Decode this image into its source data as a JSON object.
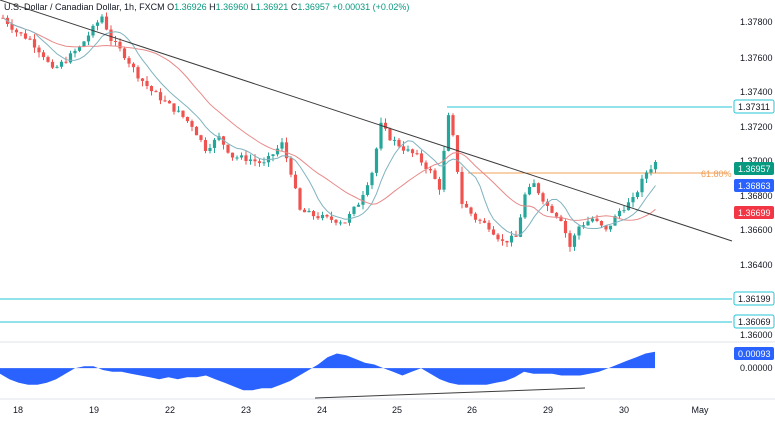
{
  "header": {
    "symbol": "U.S. Dollar / Canadian Dollar, 1h, FXCM",
    "o_label": "O",
    "o_value": "1.36926",
    "h_label": "H",
    "h_value": "1.36960",
    "l_label": "L",
    "l_value": "1.36921",
    "c_label": "C",
    "c_value": "1.36957",
    "change": "+0.00031 (+0.02%)"
  },
  "colors": {
    "up": "#26a69a",
    "down": "#ef5350",
    "ma_fast": "#7fb3bf",
    "ma_slow": "#e88a8a",
    "trendline": "#3c3c3c",
    "level_line": "#26c6da",
    "fib_line": "#f0a05a",
    "osc_fill": "#2962ff",
    "price_badge": "#089981",
    "badge_blue": "#2962ff",
    "badge_red": "#f23645"
  },
  "chart_data": {
    "type": "candlestick",
    "x_ticks": [
      "18",
      "19",
      "22",
      "23",
      "24",
      "25",
      "26",
      "29",
      "30",
      "May"
    ],
    "y_ticks": [
      "1.37800",
      "1.37600",
      "1.37400",
      "1.37200",
      "1.37000",
      "1.36800",
      "1.36600",
      "1.36400",
      "1.36000"
    ],
    "ylim": [
      1.3582,
      1.3794
    ],
    "trendline": {
      "start": [
        0,
        1.3795
      ],
      "end": [
        145,
        1.3664
      ]
    },
    "fib_level": {
      "label": "61.80%",
      "price": 1.3694
    },
    "horizontal_levels": [
      1.37311,
      1.36199,
      1.36069
    ],
    "price_badges": [
      {
        "label": "1.37311",
        "price": 1.37311,
        "style": "outline"
      },
      {
        "label": "1.36957",
        "price": 1.36957,
        "style": "green"
      },
      {
        "label": "1.36863",
        "price": 1.36863,
        "style": "blue"
      },
      {
        "label": "1.36699",
        "price": 1.36699,
        "style": "red"
      },
      {
        "label": "1.36199",
        "price": 1.36199,
        "style": "outline"
      },
      {
        "label": "1.36069",
        "price": 1.36069,
        "style": "outline"
      }
    ],
    "oscillator": {
      "zero_label": "0.00000",
      "last_label": "0.00093",
      "ylim": [
        -0.0013,
        0.0011
      ],
      "values": [
        -0.0003,
        -0.0006,
        -0.0008,
        -0.0009,
        -0.0009,
        -0.0008,
        -0.0006,
        -0.0003,
        0.0,
        0.0001,
        0.0001,
        -0.0001,
        -0.0002,
        -0.0002,
        -0.0003,
        -0.0004,
        -0.0005,
        -0.0006,
        -0.0005,
        -0.0006,
        -0.0005,
        -0.0005,
        -0.0004,
        -0.0006,
        -0.0008,
        -0.001,
        -0.0012,
        -0.0012,
        -0.0011,
        -0.0011,
        -0.0009,
        -0.0007,
        -0.0004,
        -0.0001,
        0.0002,
        0.0006,
        0.0008,
        0.0007,
        0.0005,
        0.0003,
        0.0002,
        0.0,
        -0.0002,
        -0.0004,
        -0.0002,
        0.0,
        -0.0003,
        -0.0006,
        -0.0008,
        -0.0009,
        -0.0009,
        -0.0009,
        -0.0009,
        -0.0008,
        -0.0007,
        -0.0005,
        -0.0002,
        -0.0003,
        -0.0003,
        -0.0003,
        -0.0004,
        -0.0004,
        -0.0004,
        -0.0003,
        -0.0002,
        0.0,
        0.0002,
        0.0004,
        0.0006,
        0.0008,
        0.0009
      ],
      "divergence_line": {
        "start": [
          45,
          -0.00145
        ],
        "end": [
          101,
          -0.00095
        ]
      }
    }
  }
}
